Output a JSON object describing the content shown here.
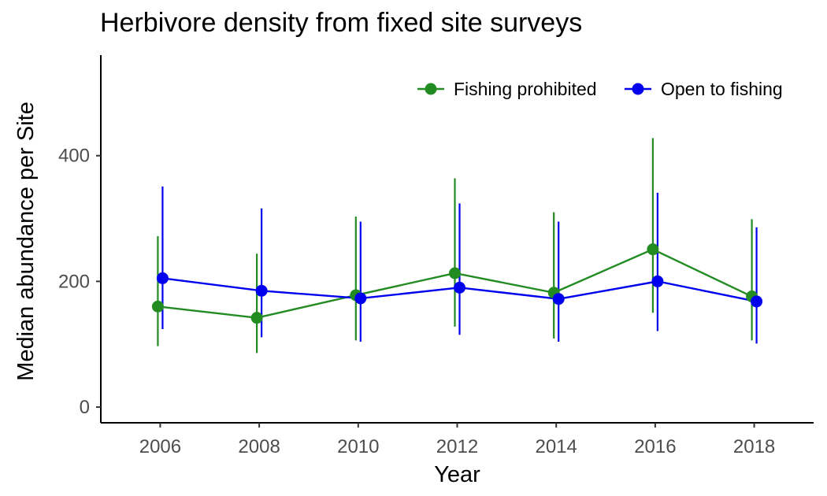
{
  "chart_data": {
    "type": "line",
    "title": "Herbivore density from fixed site surveys",
    "xlabel": "Year",
    "ylabel": "Median abundance per Site",
    "x": [
      2006,
      2008,
      2010,
      2012,
      2014,
      2016,
      2018
    ],
    "x_ticks": [
      2006,
      2008,
      2010,
      2012,
      2014,
      2016,
      2018
    ],
    "y_ticks": [
      0,
      200,
      400
    ],
    "xlim": [
      2004.8,
      2019.2
    ],
    "ylim": [
      -25,
      560
    ],
    "grid": false,
    "legend_position": "top-right",
    "series": [
      {
        "name": "Fishing prohibited",
        "color": "#228B22",
        "values": [
          160,
          142,
          178,
          213,
          182,
          251,
          176
        ],
        "lower": [
          97,
          86,
          106,
          128,
          109,
          150,
          106
        ],
        "upper": [
          272,
          244,
          303,
          364,
          310,
          428,
          299
        ]
      },
      {
        "name": "Open to fishing",
        "color": "#0000EE",
        "values": [
          205,
          185,
          173,
          190,
          172,
          200,
          168
        ],
        "lower": [
          124,
          111,
          104,
          115,
          104,
          121,
          101
        ],
        "upper": [
          351,
          316,
          295,
          324,
          295,
          341,
          286
        ]
      }
    ]
  }
}
